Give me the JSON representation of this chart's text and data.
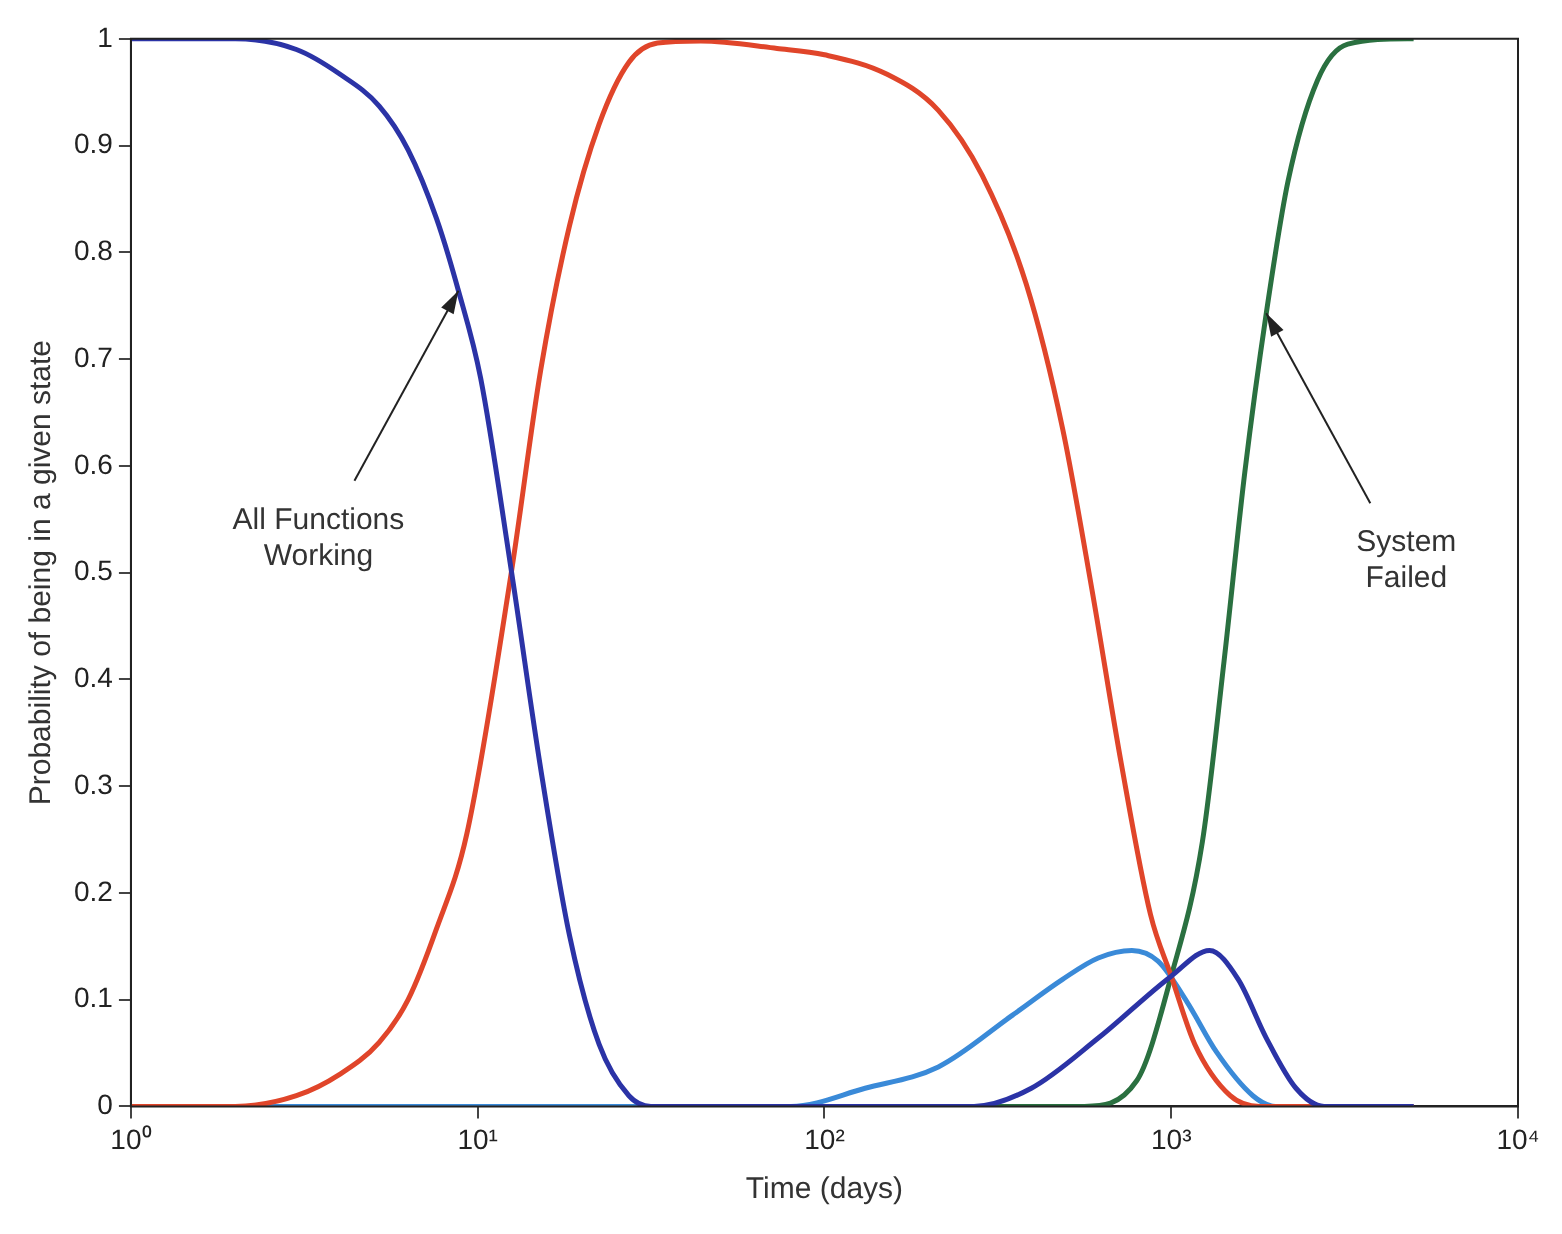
{
  "chart_data": {
    "type": "line",
    "xlabel": "Time (days)",
    "ylabel": "Probability of being in a given state",
    "log": "x",
    "grid": false,
    "legend": false,
    "marker": "none",
    "line_style": "solid",
    "xlim": [
      1,
      10000
    ],
    "xticks": [
      {
        "value": 1,
        "label": "10⁰"
      },
      {
        "value": 10,
        "label": "10¹"
      },
      {
        "value": 100,
        "label": "10²"
      },
      {
        "value": 1000,
        "label": "10³"
      },
      {
        "value": 10000,
        "label": "10⁴"
      }
    ],
    "ylim": [
      0,
      1
    ],
    "yticks": [
      0,
      0.1,
      0.2,
      0.3,
      0.4,
      0.5,
      0.6,
      0.7,
      0.8,
      0.9,
      1
    ],
    "series": [
      {
        "color": "#2b33a6",
        "x": [
          1,
          2,
          3,
          4,
          5.2,
          6.3,
          7.6,
          8.8,
          10.2,
          12.5,
          15.2,
          18.4,
          22.4,
          27.3,
          31.6,
          270,
          395,
          616,
          1000,
          1290,
          1560,
          1880,
          2290,
          2760,
          5000
        ],
        "values": [
          1,
          1,
          0.99,
          0.967,
          0.937,
          0.896,
          0.832,
          0.764,
          0.682,
          0.502,
          0.316,
          0.16,
          0.058,
          0.01,
          0,
          0,
          0.017,
          0.064,
          0.122,
          0.146,
          0.119,
          0.064,
          0.017,
          0,
          0
        ]
      },
      {
        "color": "#e0452a",
        "x": [
          1,
          2,
          3,
          4,
          5.2,
          6.3,
          7.6,
          9.3,
          12.5,
          15.2,
          18.4,
          22.4,
          27.3,
          33,
          44,
          73,
          100,
          151,
          213,
          285,
          382,
          486,
          590,
          717,
          871,
          1000,
          1170,
          1480,
          1800,
          5000
        ],
        "values": [
          0,
          0,
          0.01,
          0.03,
          0.06,
          0.1,
          0.166,
          0.255,
          0.5,
          0.69,
          0.825,
          0.92,
          0.978,
          0.996,
          0.998,
          0.991,
          0.985,
          0.967,
          0.933,
          0.872,
          0.77,
          0.635,
          0.485,
          0.322,
          0.18,
          0.122,
          0.058,
          0.01,
          0,
          0
        ]
      },
      {
        "color": "#3a8ad8",
        "x": [
          1,
          80,
          131,
          213,
          347,
          486,
          616,
          770,
          916,
          1110,
          1350,
          1720,
          2000,
          5000
        ],
        "values": [
          0,
          0,
          0.017,
          0.037,
          0.085,
          0.119,
          0.139,
          0.146,
          0.136,
          0.098,
          0.051,
          0.01,
          0,
          0
        ]
      },
      {
        "color": "#2a7040",
        "x": [
          1,
          562,
          795,
          1000,
          1230,
          1420,
          1630,
          1880,
          2170,
          2640,
          3230,
          4800,
          5000
        ],
        "values": [
          0,
          0,
          0.024,
          0.122,
          0.248,
          0.417,
          0.594,
          0.743,
          0.866,
          0.961,
          0.995,
          1,
          1
        ]
      }
    ],
    "annotations": [
      {
        "text": "All Functions\nWorking",
        "x": 8.8,
        "y": 0.764
      },
      {
        "text": "System\nFailed",
        "x": 1880,
        "y": 0.743
      }
    ]
  }
}
